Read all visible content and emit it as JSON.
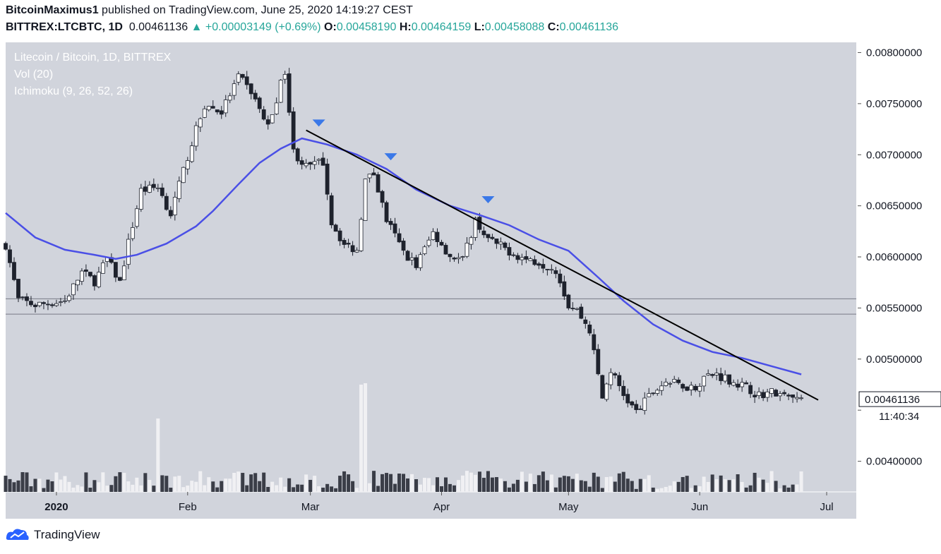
{
  "header": {
    "author": "BitcoinMaximus1",
    "published_text": "published on TradingView.com, June 25, 2020 14:19:27 CEST",
    "symbol": "BITTREX:LTCBTC, 1D",
    "price": "0.00461136",
    "change": "+0.00003149 (+0.69%)",
    "o_label": "O:",
    "o_value": "0.00458190",
    "h_label": "H:",
    "h_value": "0.00464159",
    "l_label": "L:",
    "l_value": "0.00458088",
    "c_label": "C:",
    "c_value": "0.00461136"
  },
  "legend": {
    "title": "Litecoin / Bitcoin, 1D, BITTREX",
    "vol": "Vol (20)",
    "ichimoku": "Ichimoku (9, 26, 52, 26)"
  },
  "footer": {
    "brand": "TradingView"
  },
  "colors": {
    "background": "#d1d4dc",
    "up_candle": "#ffffff",
    "down_candle": "#1e222d",
    "ma_line": "#4a4fe6",
    "trend_line": "#000000",
    "marker": "#3a78e8",
    "support_line": "#787b86",
    "positive": "#26a69a"
  },
  "chart_data": {
    "type": "candlestick",
    "symbol": "LTCBTC",
    "x_range": [
      "2019-12-20",
      "2020-07-08"
    ],
    "ylim": [
      0.0037,
      0.0081
    ],
    "y_ticks": [
      0.008,
      0.0075,
      0.007,
      0.0065,
      0.006,
      0.0055,
      0.005,
      0.0045,
      0.004
    ],
    "y_tick_labels": [
      "0.00800000",
      "0.00750000",
      "0.00700000",
      "0.00650000",
      "0.00600000",
      "0.00550000",
      "0.00500000",
      "",
      "0.00400000"
    ],
    "x_ticks": [
      {
        "date": "2020-01-01",
        "label": "2020"
      },
      {
        "date": "2020-02-01",
        "label": "Feb"
      },
      {
        "date": "2020-03-01",
        "label": "Mar"
      },
      {
        "date": "2020-04-01",
        "label": "Apr"
      },
      {
        "date": "2020-05-01",
        "label": "May"
      },
      {
        "date": "2020-06-01",
        "label": "Jun"
      },
      {
        "date": "2020-07-01",
        "label": "Jul"
      }
    ],
    "last_price": {
      "value": 0.00461136,
      "label": "0.00461136",
      "countdown": "11:40:34"
    },
    "close_path": [
      [
        "2019-12-20",
        0.00612
      ],
      [
        "2019-12-23",
        0.00558
      ],
      [
        "2019-12-27",
        0.00553
      ],
      [
        "2020-01-03",
        0.00557
      ],
      [
        "2020-01-07",
        0.00585
      ],
      [
        "2020-01-10",
        0.00576
      ],
      [
        "2020-01-13",
        0.00598
      ],
      [
        "2020-01-16",
        0.00575
      ],
      [
        "2020-01-18",
        0.00614
      ],
      [
        "2020-01-21",
        0.00665
      ],
      [
        "2020-01-25",
        0.00668
      ],
      [
        "2020-01-28",
        0.00642
      ],
      [
        "2020-02-02",
        0.00712
      ],
      [
        "2020-02-05",
        0.00748
      ],
      [
        "2020-02-09",
        0.00742
      ],
      [
        "2020-02-13",
        0.00776
      ],
      [
        "2020-02-16",
        0.00762
      ],
      [
        "2020-02-20",
        0.00727
      ],
      [
        "2020-02-24",
        0.00783
      ],
      [
        "2020-02-26",
        0.00703
      ],
      [
        "2020-02-29",
        0.00688
      ],
      [
        "2020-03-04",
        0.00693
      ],
      [
        "2020-03-06",
        0.00634
      ],
      [
        "2020-03-09",
        0.00612
      ],
      [
        "2020-03-12",
        0.00606
      ],
      [
        "2020-03-14",
        0.00675
      ],
      [
        "2020-03-16",
        0.00681
      ],
      [
        "2020-03-19",
        0.00636
      ],
      [
        "2020-03-23",
        0.00605
      ],
      [
        "2020-03-26",
        0.00592
      ],
      [
        "2020-03-30",
        0.00624
      ],
      [
        "2020-04-03",
        0.00601
      ],
      [
        "2020-04-06",
        0.00597
      ],
      [
        "2020-04-09",
        0.00636
      ],
      [
        "2020-04-12",
        0.00617
      ],
      [
        "2020-04-16",
        0.00608
      ],
      [
        "2020-04-20",
        0.00599
      ],
      [
        "2020-04-24",
        0.00595
      ],
      [
        "2020-04-28",
        0.00588
      ],
      [
        "2020-05-01",
        0.00553
      ],
      [
        "2020-05-03",
        0.00548
      ],
      [
        "2020-05-06",
        0.00528
      ],
      [
        "2020-05-09",
        0.00462
      ],
      [
        "2020-05-11",
        0.00489
      ],
      [
        "2020-05-14",
        0.00465
      ],
      [
        "2020-05-17",
        0.00448
      ],
      [
        "2020-05-21",
        0.00468
      ],
      [
        "2020-05-24",
        0.00478
      ],
      [
        "2020-05-27",
        0.00475
      ],
      [
        "2020-05-31",
        0.00472
      ],
      [
        "2020-06-02",
        0.00483
      ],
      [
        "2020-06-05",
        0.00485
      ],
      [
        "2020-06-09",
        0.00478
      ],
      [
        "2020-06-12",
        0.00472
      ],
      [
        "2020-06-15",
        0.00465
      ],
      [
        "2020-06-18",
        0.00468
      ],
      [
        "2020-06-21",
        0.00463
      ],
      [
        "2020-06-25",
        0.00461
      ]
    ],
    "ma_line": [
      [
        "2019-12-20",
        0.00643
      ],
      [
        "2019-12-27",
        0.00619
      ],
      [
        "2020-01-03",
        0.00607
      ],
      [
        "2020-01-10",
        0.00602
      ],
      [
        "2020-01-15",
        0.00598
      ],
      [
        "2020-01-20",
        0.00602
      ],
      [
        "2020-01-27",
        0.00613
      ],
      [
        "2020-02-03",
        0.0063
      ],
      [
        "2020-02-07",
        0.00645
      ],
      [
        "2020-02-13",
        0.00671
      ],
      [
        "2020-02-18",
        0.00692
      ],
      [
        "2020-02-23",
        0.00706
      ],
      [
        "2020-02-28",
        0.00716
      ],
      [
        "2020-03-05",
        0.0071
      ],
      [
        "2020-03-12",
        0.007
      ],
      [
        "2020-03-19",
        0.00686
      ],
      [
        "2020-03-26",
        0.00666
      ],
      [
        "2020-04-03",
        0.0065
      ],
      [
        "2020-04-10",
        0.00641
      ],
      [
        "2020-04-17",
        0.00631
      ],
      [
        "2020-04-24",
        0.00617
      ],
      [
        "2020-05-01",
        0.00606
      ],
      [
        "2020-05-08",
        0.0058
      ],
      [
        "2020-05-14",
        0.00557
      ],
      [
        "2020-05-21",
        0.00534
      ],
      [
        "2020-05-28",
        0.00518
      ],
      [
        "2020-06-04",
        0.00507
      ],
      [
        "2020-06-11",
        0.00501
      ],
      [
        "2020-06-18",
        0.00493
      ],
      [
        "2020-06-25",
        0.00485
      ]
    ],
    "trend_line": [
      [
        "2020-02-29",
        0.00724
      ],
      [
        "2020-06-29",
        0.0046
      ]
    ],
    "support_zone": [
      0.00544,
      0.00559
    ],
    "markers": [
      [
        "2020-03-03",
        0.00731
      ],
      [
        "2020-03-20",
        0.00698
      ],
      [
        "2020-04-12",
        0.00656
      ]
    ],
    "volume_spikes": [
      [
        "2020-01-25",
        0.52
      ],
      [
        "2020-03-13",
        0.76
      ],
      [
        "2020-03-14",
        0.77
      ]
    ]
  }
}
